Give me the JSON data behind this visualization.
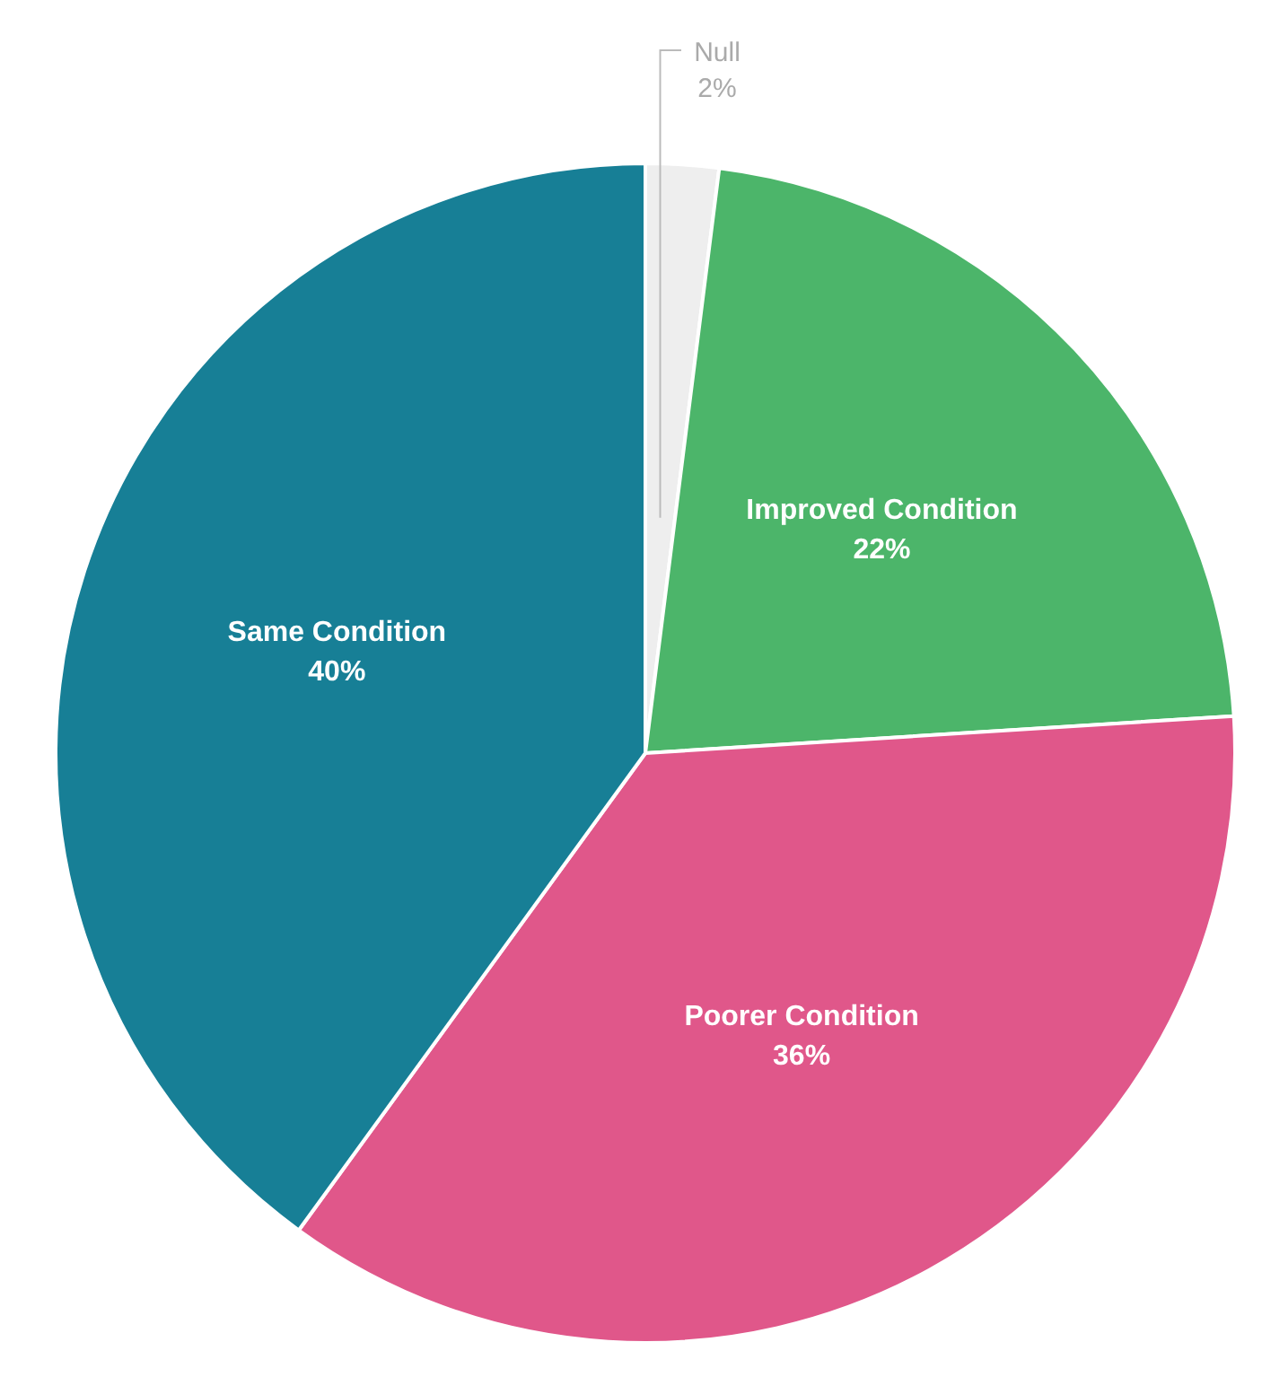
{
  "chart_data": {
    "type": "pie",
    "categories": [
      "Null",
      "Improved Condition",
      "Poorer Condition",
      "Same Condition"
    ],
    "values": [
      2,
      22,
      36,
      40
    ],
    "colors": [
      "#eeeeee",
      "#4cb56a",
      "#e0578a",
      "#177f96"
    ],
    "value_labels": [
      "2%",
      "22%",
      "36%",
      "40%"
    ],
    "legend": false
  }
}
